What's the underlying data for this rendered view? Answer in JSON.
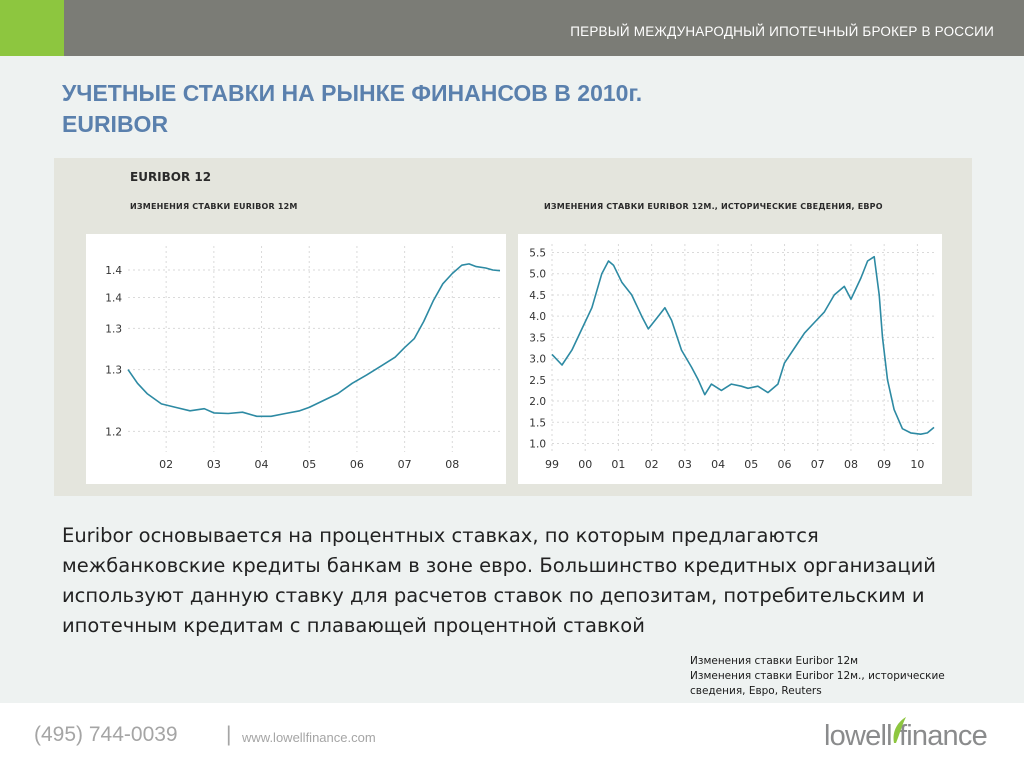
{
  "header": {
    "tagline": "ПЕРВЫЙ МЕЖДУНАРОДНЫЙ ИПОТЕЧНЫЙ БРОКЕР В РОССИИ",
    "accent_color": "#8dc63f",
    "bar_color": "#7b7c76"
  },
  "slide": {
    "title_line1": "УЧЕТНЫЕ СТАВКИ НА РЫНКЕ ФИНАНСОВ В 2010г.",
    "title_line2": "EURIBOR",
    "title_color": "#5a80ad",
    "body": "Euribor основывается на процентных ставках, по которым предлагаются межбанковские кредиты банкам в зоне евро. Большинство кредитных организаций используют данную ставку для расчетов ставок по депозитам, потребительским и ипотечным кредитам с плавающей процентной ставкой",
    "caption_line1": "Изменения ставки Euribor 12м",
    "caption_line2": "Изменения ставки Euribor 12м., исторические сведения, Евро, Reuters"
  },
  "panel": {
    "title": "EURIBOR 12"
  },
  "footer": {
    "phone": "(495) 744-0039",
    "separator": "|",
    "url": "www.lowellfinance.com",
    "logo_text": "lowell finance",
    "logo_leaf_color": "#8dc63f"
  },
  "chart_data": [
    {
      "type": "line",
      "title": "ИЗМЕНЕНИЯ СТАВКИ EURIBOR 12М",
      "line_color": "#2d8aa3",
      "x_tick_labels": [
        "02",
        "03",
        "04",
        "05",
        "06",
        "07",
        "08"
      ],
      "y_tick_labels": [
        "1.2",
        "1.3",
        "1.3",
        "1.4",
        "1.4"
      ],
      "x_range": [
        2001.2,
        2009.0
      ],
      "y_range": [
        1.18,
        1.48
      ],
      "grid": true,
      "points": [
        [
          2001.2,
          1.3
        ],
        [
          2001.4,
          1.28
        ],
        [
          2001.6,
          1.265
        ],
        [
          2001.9,
          1.25
        ],
        [
          2002.2,
          1.245
        ],
        [
          2002.5,
          1.24
        ],
        [
          2002.8,
          1.243
        ],
        [
          2003.0,
          1.237
        ],
        [
          2003.3,
          1.236
        ],
        [
          2003.6,
          1.238
        ],
        [
          2003.9,
          1.232
        ],
        [
          2004.2,
          1.232
        ],
        [
          2004.5,
          1.236
        ],
        [
          2004.8,
          1.24
        ],
        [
          2005.0,
          1.245
        ],
        [
          2005.3,
          1.255
        ],
        [
          2005.6,
          1.265
        ],
        [
          2005.9,
          1.28
        ],
        [
          2006.2,
          1.292
        ],
        [
          2006.5,
          1.305
        ],
        [
          2006.8,
          1.318
        ],
        [
          2007.0,
          1.332
        ],
        [
          2007.2,
          1.345
        ],
        [
          2007.4,
          1.37
        ],
        [
          2007.6,
          1.4
        ],
        [
          2007.8,
          1.425
        ],
        [
          2008.0,
          1.44
        ],
        [
          2008.2,
          1.452
        ],
        [
          2008.35,
          1.454
        ],
        [
          2008.5,
          1.45
        ],
        [
          2008.7,
          1.448
        ],
        [
          2008.85,
          1.445
        ],
        [
          2009.0,
          1.444
        ]
      ]
    },
    {
      "type": "line",
      "title": "ИЗМЕНЕНИЯ СТАВКИ EURIBOR 12М., ИСТОРИЧЕСКИЕ СВЕДЕНИЯ, ЕВРО",
      "line_color": "#2d8aa3",
      "x_tick_labels": [
        "99",
        "00",
        "01",
        "02",
        "03",
        "04",
        "05",
        "06",
        "07",
        "08",
        "09",
        "10"
      ],
      "y_tick_labels": [
        "5.5",
        "5.0",
        "4.5",
        "4.0",
        "3.5",
        "3.0",
        "2.5",
        "2.0",
        "1.5",
        "1.0"
      ],
      "x_range": [
        1999.0,
        2010.5
      ],
      "y_range": [
        0.8,
        5.7
      ],
      "grid": true,
      "points": [
        [
          1999.0,
          3.1
        ],
        [
          1999.3,
          2.85
        ],
        [
          1999.6,
          3.2
        ],
        [
          1999.9,
          3.7
        ],
        [
          2000.2,
          4.2
        ],
        [
          2000.5,
          5.0
        ],
        [
          2000.7,
          5.3
        ],
        [
          2000.85,
          5.2
        ],
        [
          2001.1,
          4.8
        ],
        [
          2001.4,
          4.5
        ],
        [
          2001.7,
          4.0
        ],
        [
          2001.9,
          3.7
        ],
        [
          2002.2,
          4.0
        ],
        [
          2002.4,
          4.2
        ],
        [
          2002.6,
          3.9
        ],
        [
          2002.9,
          3.2
        ],
        [
          2003.2,
          2.8
        ],
        [
          2003.4,
          2.5
        ],
        [
          2003.6,
          2.15
        ],
        [
          2003.8,
          2.4
        ],
        [
          2004.1,
          2.25
        ],
        [
          2004.4,
          2.4
        ],
        [
          2004.7,
          2.35
        ],
        [
          2004.9,
          2.3
        ],
        [
          2005.2,
          2.35
        ],
        [
          2005.5,
          2.2
        ],
        [
          2005.8,
          2.4
        ],
        [
          2006.0,
          2.9
        ],
        [
          2006.3,
          3.25
        ],
        [
          2006.6,
          3.6
        ],
        [
          2006.9,
          3.85
        ],
        [
          2007.2,
          4.1
        ],
        [
          2007.5,
          4.5
        ],
        [
          2007.8,
          4.7
        ],
        [
          2008.0,
          4.4
        ],
        [
          2008.3,
          4.9
        ],
        [
          2008.5,
          5.3
        ],
        [
          2008.7,
          5.4
        ],
        [
          2008.85,
          4.5
        ],
        [
          2008.95,
          3.5
        ],
        [
          2009.1,
          2.5
        ],
        [
          2009.3,
          1.8
        ],
        [
          2009.55,
          1.35
        ],
        [
          2009.8,
          1.25
        ],
        [
          2010.1,
          1.22
        ],
        [
          2010.3,
          1.25
        ],
        [
          2010.5,
          1.38
        ]
      ]
    }
  ]
}
